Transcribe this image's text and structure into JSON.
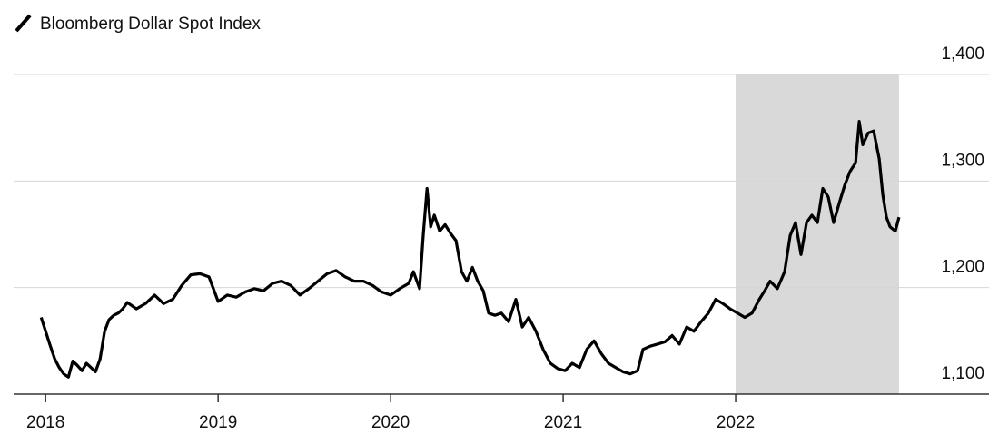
{
  "chart_data": {
    "type": "line",
    "x": [
      2017.974,
      2018.0,
      2018.026,
      2018.053,
      2018.079,
      2018.105,
      2018.132,
      2018.158,
      2018.184,
      2018.211,
      2018.237,
      2018.263,
      2018.289,
      2018.316,
      2018.342,
      2018.368,
      2018.395,
      2018.421,
      2018.447,
      2018.474,
      2018.526,
      2018.579,
      2018.632,
      2018.684,
      2018.737,
      2018.789,
      2018.842,
      2018.895,
      2018.947,
      2019.0,
      2019.053,
      2019.105,
      2019.158,
      2019.211,
      2019.263,
      2019.316,
      2019.368,
      2019.421,
      2019.474,
      2019.526,
      2019.579,
      2019.632,
      2019.684,
      2019.737,
      2019.789,
      2019.842,
      2019.895,
      2019.947,
      2020.0,
      2020.053,
      2020.105,
      2020.132,
      2020.168,
      2020.189,
      2020.211,
      2020.232,
      2020.253,
      2020.284,
      2020.316,
      2020.347,
      2020.379,
      2020.411,
      2020.442,
      2020.474,
      2020.505,
      2020.537,
      2020.568,
      2020.605,
      2020.642,
      2020.684,
      2020.726,
      2020.763,
      2020.8,
      2020.842,
      2020.884,
      2020.926,
      2020.968,
      2021.011,
      2021.053,
      2021.095,
      2021.137,
      2021.179,
      2021.221,
      2021.263,
      2021.305,
      2021.347,
      2021.389,
      2021.432,
      2021.463,
      2021.505,
      2021.547,
      2021.589,
      2021.632,
      2021.674,
      2021.716,
      2021.758,
      2021.8,
      2021.842,
      2021.884,
      2021.926,
      2021.968,
      2022.011,
      2022.053,
      2022.095,
      2022.137,
      2022.168,
      2022.2,
      2022.242,
      2022.284,
      2022.316,
      2022.347,
      2022.379,
      2022.411,
      2022.442,
      2022.474,
      2022.505,
      2022.537,
      2022.568,
      2022.6,
      2022.632,
      2022.663,
      2022.695,
      2022.716,
      2022.737,
      2022.768,
      2022.8,
      2022.832,
      2022.853,
      2022.874,
      2022.895,
      2022.926,
      2022.947
    ],
    "series": [
      {
        "name": "Bloomberg Dollar Spot Index",
        "color": "#000000",
        "values": [
          1172,
          1159,
          1146,
          1133,
          1125,
          1119,
          1116,
          1131,
          1127,
          1122,
          1129,
          1125,
          1121,
          1133,
          1159,
          1170,
          1174,
          1176,
          1180,
          1186,
          1180,
          1185,
          1193,
          1185,
          1189,
          1202,
          1212,
          1213,
          1210,
          1187,
          1193,
          1191,
          1196,
          1199,
          1197,
          1204,
          1206,
          1202,
          1193,
          1199,
          1206,
          1213,
          1216,
          1210,
          1206,
          1206,
          1202,
          1196,
          1193,
          1199,
          1204,
          1215,
          1199,
          1249,
          1293,
          1257,
          1268,
          1253,
          1259,
          1251,
          1244,
          1215,
          1206,
          1219,
          1206,
          1197,
          1176,
          1174,
          1176,
          1168,
          1189,
          1163,
          1172,
          1159,
          1142,
          1129,
          1124,
          1122,
          1129,
          1125,
          1142,
          1150,
          1138,
          1129,
          1125,
          1121,
          1119,
          1122,
          1142,
          1145,
          1147,
          1149,
          1155,
          1147,
          1163,
          1159,
          1168,
          1176,
          1189,
          1185,
          1180,
          1176,
          1172,
          1176,
          1189,
          1197,
          1206,
          1199,
          1215,
          1249,
          1261,
          1231,
          1261,
          1268,
          1261,
          1293,
          1285,
          1261,
          1279,
          1296,
          1309,
          1317,
          1356,
          1334,
          1345,
          1347,
          1321,
          1287,
          1266,
          1257,
          1253,
          1266
        ]
      }
    ],
    "xlim": [
      2017.82,
      2023
    ],
    "xticks": [
      2018,
      2019,
      2020,
      2021,
      2022
    ],
    "ylim": [
      1100,
      1400
    ],
    "yticks": [
      {
        "value": 1100,
        "label": "1,100"
      },
      {
        "value": 1200,
        "label": "1,200"
      },
      {
        "value": 1300,
        "label": "1,300"
      },
      {
        "value": 1400,
        "label": "1,400"
      }
    ],
    "shade": [
      2022,
      2022.947
    ],
    "grid": true
  }
}
